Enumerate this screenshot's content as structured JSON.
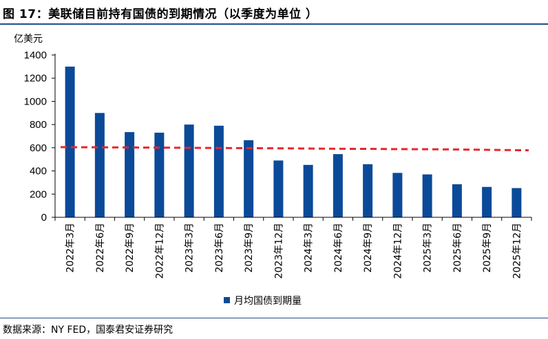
{
  "figure": {
    "title": "图 17：美联储目前持有国债的到期情况（以季度为单位 ）",
    "source": "数据来源：NY FED，国泰君安证券研究"
  },
  "chart_data": {
    "type": "bar",
    "ylabel": "亿美元",
    "ylim": [
      0,
      1400
    ],
    "yticks": [
      0,
      200,
      400,
      600,
      800,
      1000,
      1200,
      1400
    ],
    "grid": false,
    "legend_position": "bottom-center",
    "categories": [
      "2022年3月",
      "2022年6月",
      "2022年9月",
      "2022年12月",
      "2023年3月",
      "2023年6月",
      "2023年9月",
      "2023年12月",
      "2024年3月",
      "2024年6月",
      "2024年9月",
      "2024年12月",
      "2025年3月",
      "2025年6月",
      "2025年9月",
      "2025年12月"
    ],
    "series": [
      {
        "name": "月均国债到期量",
        "type": "bar",
        "color": "#0b4a99",
        "values": [
          1300,
          900,
          735,
          730,
          800,
          790,
          665,
          490,
          452,
          545,
          458,
          383,
          370,
          285,
          262,
          252
        ]
      },
      {
        "type": "line",
        "style": "dashed",
        "color": "#e8262d",
        "values": [
          605,
          604,
          602,
          601,
          599,
          598,
          596,
          595,
          593,
          591,
          590,
          588,
          587,
          585,
          582,
          578
        ]
      }
    ]
  }
}
